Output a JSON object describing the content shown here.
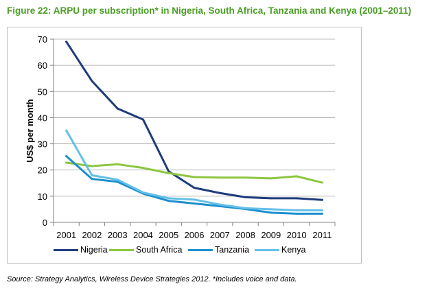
{
  "figure": {
    "title": "Figure 22: ARPU per subscription* in Nigeria, South Africa, Tanzania and Kenya (2001–2011)",
    "source": "Source: Strategy Analytics, Wireless Device Strategies 2012. *Includes voice and data."
  },
  "chart_data": {
    "type": "line",
    "title": "Figure 22: ARPU per subscription* in Nigeria, South Africa, Tanzania and Kenya (2001–2011)",
    "xlabel": "",
    "ylabel": "US$ per month",
    "x": [
      "2001",
      "2002",
      "2003",
      "2004",
      "2005",
      "2006",
      "2007",
      "2008",
      "2009",
      "2010",
      "2011"
    ],
    "ylim": [
      0,
      70
    ],
    "yticks": [
      0,
      10,
      20,
      30,
      40,
      50,
      60,
      70
    ],
    "grid": true,
    "legend": "bottom",
    "series": [
      {
        "name": "Nigeria",
        "color": "#1f3b7a",
        "values": [
          69,
          54,
          43.5,
          39.3,
          19.5,
          13.2,
          11.2,
          9.6,
          9.2,
          9.2,
          8.6
        ]
      },
      {
        "name": "South Africa",
        "color": "#8cc63f",
        "values": [
          22.8,
          21.5,
          22.2,
          20.8,
          18.8,
          17.3,
          17.1,
          17.1,
          16.8,
          17.6,
          15.2
        ]
      },
      {
        "name": "Tanzania",
        "color": "#1d8fce",
        "values": [
          25.3,
          16.6,
          15.5,
          11.0,
          8.2,
          7.2,
          6.2,
          5.1,
          3.7,
          3.3,
          3.3
        ]
      },
      {
        "name": "Kenya",
        "color": "#63bfe8",
        "values": [
          35.1,
          18,
          16.3,
          11.4,
          9.2,
          8.7,
          6.8,
          5.4,
          5.0,
          4.6,
          4.6
        ]
      }
    ]
  }
}
